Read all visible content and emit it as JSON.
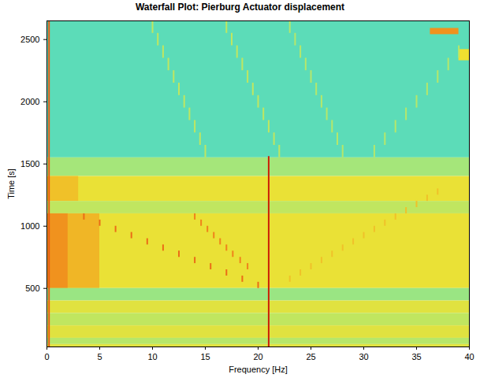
{
  "chart_data": {
    "type": "heatmap",
    "title": "Waterfall Plot: Pierburg Actuator displacement",
    "x_label": "Frequency [Hz]",
    "y_label": "Time [s]",
    "xlim": [
      0,
      40
    ],
    "xticks": [
      0,
      5,
      10,
      15,
      20,
      25,
      30,
      35,
      40
    ],
    "ylim": [
      30,
      2650
    ],
    "yticks": [
      500,
      1000,
      1500,
      2000,
      2500
    ],
    "zlim": [
      0,
      1
    ],
    "cells": [
      {
        "f0": 0,
        "f1": 40,
        "t0": 1550,
        "t1": 2650,
        "value": 0.25
      },
      {
        "f0": 0,
        "f1": 40,
        "t0": 1400,
        "t1": 1550,
        "value": 0.38
      },
      {
        "f0": 0,
        "f1": 40,
        "t0": 1200,
        "t1": 1400,
        "value": 0.58
      },
      {
        "f0": 0,
        "f1": 3,
        "t0": 1200,
        "t1": 1400,
        "value": 0.66
      },
      {
        "f0": 0,
        "f1": 40,
        "t0": 1100,
        "t1": 1200,
        "value": 0.45
      },
      {
        "f0": 0,
        "f1": 40,
        "t0": 500,
        "t1": 1100,
        "value": 0.58
      },
      {
        "f0": 0,
        "f1": 5,
        "t0": 500,
        "t1": 1100,
        "value": 0.68
      },
      {
        "f0": 0,
        "f1": 2,
        "t0": 500,
        "t1": 1100,
        "value": 0.75
      },
      {
        "f0": 0,
        "f1": 40,
        "t0": 400,
        "t1": 500,
        "value": 0.36
      },
      {
        "f0": 0,
        "f1": 40,
        "t0": 300,
        "t1": 400,
        "value": 0.55
      },
      {
        "f0": 0,
        "f1": 40,
        "t0": 200,
        "t1": 300,
        "value": 0.45
      },
      {
        "f0": 0,
        "f1": 40,
        "t0": 100,
        "t1": 200,
        "value": 0.55
      },
      {
        "f0": 0,
        "f1": 40,
        "t0": 50,
        "t1": 100,
        "value": 0.42
      },
      {
        "f0": 0,
        "f1": 40,
        "t0": 30,
        "t1": 50,
        "value": 0.55
      },
      {
        "f0": 36.3,
        "f1": 39,
        "t0": 2540,
        "t1": 2590,
        "value": 0.75
      },
      {
        "f0": 39,
        "f1": 40,
        "t0": 2330,
        "t1": 2420,
        "value": 0.6
      }
    ],
    "peaks": [
      {
        "f": 0.2,
        "t0": 30,
        "t1": 2650,
        "value": 0.85
      },
      {
        "f": 21,
        "t0": 30,
        "t1": 1560,
        "value": 0.95
      },
      {
        "f": 15,
        "t0": 1550,
        "t1": 1650,
        "value": 0.45
      },
      {
        "f": 14.5,
        "t0": 1650,
        "t1": 1750,
        "value": 0.45
      },
      {
        "f": 14,
        "t0": 1750,
        "t1": 1850,
        "value": 0.45
      },
      {
        "f": 13.5,
        "t0": 1850,
        "t1": 1950,
        "value": 0.45
      },
      {
        "f": 13,
        "t0": 1950,
        "t1": 2050,
        "value": 0.45
      },
      {
        "f": 12.5,
        "t0": 2050,
        "t1": 2150,
        "value": 0.45
      },
      {
        "f": 12,
        "t0": 2150,
        "t1": 2250,
        "value": 0.45
      },
      {
        "f": 11.5,
        "t0": 2250,
        "t1": 2350,
        "value": 0.45
      },
      {
        "f": 11,
        "t0": 2350,
        "t1": 2450,
        "value": 0.45
      },
      {
        "f": 10.5,
        "t0": 2450,
        "t1": 2550,
        "value": 0.45
      },
      {
        "f": 10,
        "t0": 2550,
        "t1": 2650,
        "value": 0.45
      },
      {
        "f": 22,
        "t0": 1550,
        "t1": 1650,
        "value": 0.45
      },
      {
        "f": 21.5,
        "t0": 1650,
        "t1": 1750,
        "value": 0.45
      },
      {
        "f": 21,
        "t0": 1750,
        "t1": 1850,
        "value": 0.45
      },
      {
        "f": 20.5,
        "t0": 1850,
        "t1": 1950,
        "value": 0.45
      },
      {
        "f": 20,
        "t0": 1950,
        "t1": 2050,
        "value": 0.45
      },
      {
        "f": 19.5,
        "t0": 2050,
        "t1": 2150,
        "value": 0.45
      },
      {
        "f": 19,
        "t0": 2150,
        "t1": 2250,
        "value": 0.45
      },
      {
        "f": 18.5,
        "t0": 2250,
        "t1": 2350,
        "value": 0.45
      },
      {
        "f": 18,
        "t0": 2350,
        "t1": 2450,
        "value": 0.45
      },
      {
        "f": 17.5,
        "t0": 2450,
        "t1": 2550,
        "value": 0.45
      },
      {
        "f": 17,
        "t0": 2550,
        "t1": 2650,
        "value": 0.45
      },
      {
        "f": 28,
        "t0": 1550,
        "t1": 1650,
        "value": 0.42
      },
      {
        "f": 27.5,
        "t0": 1650,
        "t1": 1750,
        "value": 0.42
      },
      {
        "f": 27,
        "t0": 1750,
        "t1": 1850,
        "value": 0.42
      },
      {
        "f": 26.5,
        "t0": 1850,
        "t1": 1950,
        "value": 0.42
      },
      {
        "f": 26,
        "t0": 1950,
        "t1": 2050,
        "value": 0.42
      },
      {
        "f": 25.5,
        "t0": 2050,
        "t1": 2150,
        "value": 0.42
      },
      {
        "f": 25,
        "t0": 2150,
        "t1": 2250,
        "value": 0.42
      },
      {
        "f": 24.5,
        "t0": 2250,
        "t1": 2350,
        "value": 0.42
      },
      {
        "f": 24,
        "t0": 2350,
        "t1": 2450,
        "value": 0.42
      },
      {
        "f": 23.5,
        "t0": 2450,
        "t1": 2550,
        "value": 0.42
      },
      {
        "f": 23,
        "t0": 2550,
        "t1": 2650,
        "value": 0.42
      },
      {
        "f": 31,
        "t0": 1550,
        "t1": 1650,
        "value": 0.42
      },
      {
        "f": 32,
        "t0": 1650,
        "t1": 1750,
        "value": 0.42
      },
      {
        "f": 33,
        "t0": 1750,
        "t1": 1850,
        "value": 0.42
      },
      {
        "f": 34,
        "t0": 1850,
        "t1": 1950,
        "value": 0.42
      },
      {
        "f": 35,
        "t0": 1950,
        "t1": 2050,
        "value": 0.42
      },
      {
        "f": 36,
        "t0": 2050,
        "t1": 2150,
        "value": 0.42
      },
      {
        "f": 37,
        "t0": 2150,
        "t1": 2250,
        "value": 0.42
      },
      {
        "f": 38,
        "t0": 2250,
        "t1": 2350,
        "value": 0.42
      },
      {
        "f": 39,
        "t0": 2350,
        "t1": 2450,
        "value": 0.42
      },
      {
        "f": 20,
        "t0": 500,
        "t1": 550,
        "value": 0.82
      },
      {
        "f": 18.5,
        "t0": 550,
        "t1": 600,
        "value": 0.82
      },
      {
        "f": 17,
        "t0": 600,
        "t1": 650,
        "value": 0.82
      },
      {
        "f": 15.5,
        "t0": 650,
        "t1": 700,
        "value": 0.82
      },
      {
        "f": 14,
        "t0": 700,
        "t1": 750,
        "value": 0.82
      },
      {
        "f": 12.5,
        "t0": 750,
        "t1": 800,
        "value": 0.82
      },
      {
        "f": 11,
        "t0": 800,
        "t1": 850,
        "value": 0.82
      },
      {
        "f": 9.5,
        "t0": 850,
        "t1": 900,
        "value": 0.82
      },
      {
        "f": 8,
        "t0": 900,
        "t1": 950,
        "value": 0.82
      },
      {
        "f": 6.5,
        "t0": 950,
        "t1": 1000,
        "value": 0.82
      },
      {
        "f": 5,
        "t0": 1000,
        "t1": 1050,
        "value": 0.82
      },
      {
        "f": 3.5,
        "t0": 1050,
        "t1": 1100,
        "value": 0.82
      },
      {
        "f": 19,
        "t0": 650,
        "t1": 700,
        "value": 0.78
      },
      {
        "f": 18.3,
        "t0": 700,
        "t1": 750,
        "value": 0.78
      },
      {
        "f": 17.6,
        "t0": 750,
        "t1": 800,
        "value": 0.78
      },
      {
        "f": 17,
        "t0": 800,
        "t1": 850,
        "value": 0.78
      },
      {
        "f": 16.4,
        "t0": 850,
        "t1": 900,
        "value": 0.78
      },
      {
        "f": 15.8,
        "t0": 900,
        "t1": 950,
        "value": 0.78
      },
      {
        "f": 15.2,
        "t0": 950,
        "t1": 1000,
        "value": 0.78
      },
      {
        "f": 14.6,
        "t0": 1000,
        "t1": 1050,
        "value": 0.78
      },
      {
        "f": 14,
        "t0": 1050,
        "t1": 1100,
        "value": 0.78
      },
      {
        "f": 23,
        "t0": 550,
        "t1": 600,
        "value": 0.66
      },
      {
        "f": 24,
        "t0": 600,
        "t1": 650,
        "value": 0.66
      },
      {
        "f": 25,
        "t0": 650,
        "t1": 700,
        "value": 0.66
      },
      {
        "f": 26,
        "t0": 700,
        "t1": 750,
        "value": 0.66
      },
      {
        "f": 27,
        "t0": 750,
        "t1": 800,
        "value": 0.66
      },
      {
        "f": 28,
        "t0": 800,
        "t1": 850,
        "value": 0.66
      },
      {
        "f": 29,
        "t0": 850,
        "t1": 900,
        "value": 0.66
      },
      {
        "f": 30,
        "t0": 900,
        "t1": 950,
        "value": 0.66
      },
      {
        "f": 31,
        "t0": 950,
        "t1": 1000,
        "value": 0.66
      },
      {
        "f": 32,
        "t0": 1000,
        "t1": 1050,
        "value": 0.66
      },
      {
        "f": 33,
        "t0": 1050,
        "t1": 1100,
        "value": 0.66
      },
      {
        "f": 34,
        "t0": 1100,
        "t1": 1150,
        "value": 0.66
      },
      {
        "f": 35,
        "t0": 1150,
        "t1": 1200,
        "value": 0.66
      },
      {
        "f": 36,
        "t0": 1200,
        "t1": 1250,
        "value": 0.66
      },
      {
        "f": 37,
        "t0": 1250,
        "t1": 1300,
        "value": 0.66
      }
    ]
  }
}
